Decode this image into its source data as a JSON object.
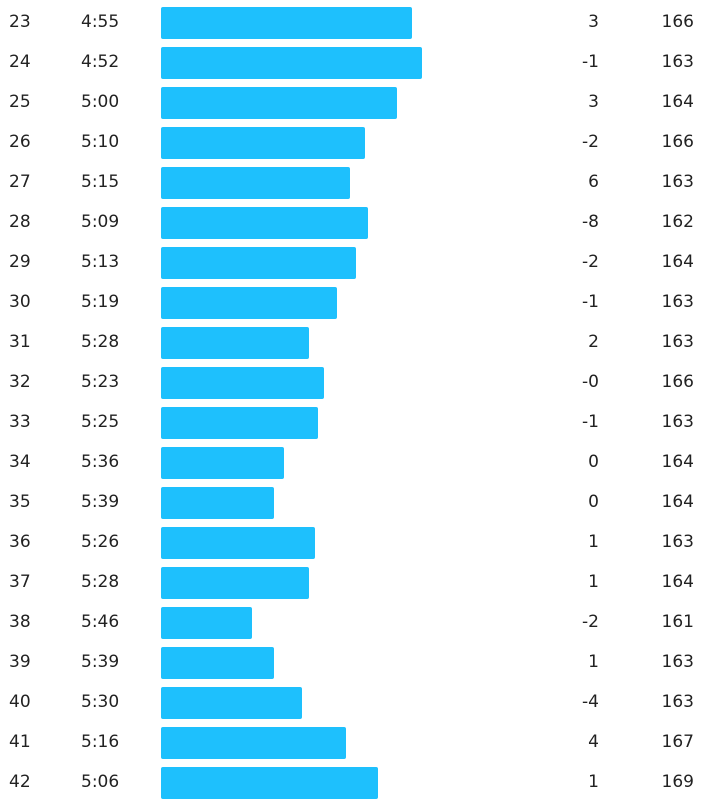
{
  "colors": {
    "bar": "#1ec0fd",
    "text": "#222222",
    "background": "#ffffff"
  },
  "pace_scale": {
    "fastest_full": "4:30",
    "slowest_zero": "6:15"
  },
  "splits": [
    {
      "km": "23",
      "pace": "4:55",
      "elevation": "3",
      "heart_rate": "166"
    },
    {
      "km": "24",
      "pace": "4:52",
      "elevation": "-1",
      "heart_rate": "163"
    },
    {
      "km": "25",
      "pace": "5:00",
      "elevation": "3",
      "heart_rate": "164"
    },
    {
      "km": "26",
      "pace": "5:10",
      "elevation": "-2",
      "heart_rate": "166"
    },
    {
      "km": "27",
      "pace": "5:15",
      "elevation": "6",
      "heart_rate": "163"
    },
    {
      "km": "28",
      "pace": "5:09",
      "elevation": "-8",
      "heart_rate": "162"
    },
    {
      "km": "29",
      "pace": "5:13",
      "elevation": "-2",
      "heart_rate": "164"
    },
    {
      "km": "30",
      "pace": "5:19",
      "elevation": "-1",
      "heart_rate": "163"
    },
    {
      "km": "31",
      "pace": "5:28",
      "elevation": "2",
      "heart_rate": "163"
    },
    {
      "km": "32",
      "pace": "5:23",
      "elevation": "-0",
      "heart_rate": "166"
    },
    {
      "km": "33",
      "pace": "5:25",
      "elevation": "-1",
      "heart_rate": "163"
    },
    {
      "km": "34",
      "pace": "5:36",
      "elevation": "0",
      "heart_rate": "164"
    },
    {
      "km": "35",
      "pace": "5:39",
      "elevation": "0",
      "heart_rate": "164"
    },
    {
      "km": "36",
      "pace": "5:26",
      "elevation": "1",
      "heart_rate": "163"
    },
    {
      "km": "37",
      "pace": "5:28",
      "elevation": "1",
      "heart_rate": "164"
    },
    {
      "km": "38",
      "pace": "5:46",
      "elevation": "-2",
      "heart_rate": "161"
    },
    {
      "km": "39",
      "pace": "5:39",
      "elevation": "1",
      "heart_rate": "163"
    },
    {
      "km": "40",
      "pace": "5:30",
      "elevation": "-4",
      "heart_rate": "163"
    },
    {
      "km": "41",
      "pace": "5:16",
      "elevation": "4",
      "heart_rate": "167"
    },
    {
      "km": "42",
      "pace": "5:06",
      "elevation": "1",
      "heart_rate": "169"
    }
  ]
}
